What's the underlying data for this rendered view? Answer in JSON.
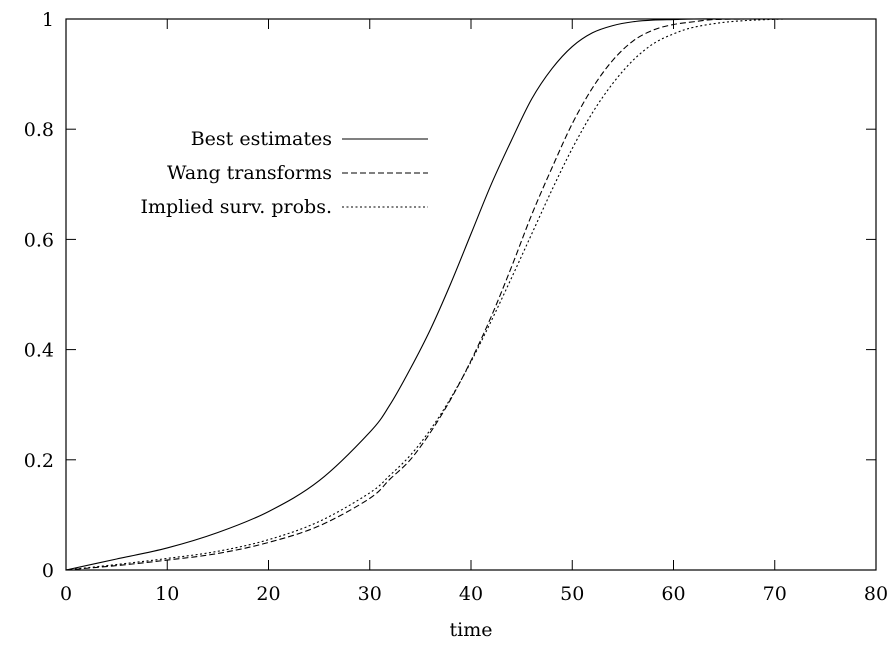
{
  "chart_data": {
    "type": "line",
    "title": "",
    "xlabel": "time",
    "ylabel": "",
    "xlim": [
      0,
      80
    ],
    "ylim": [
      0,
      1
    ],
    "x_ticks": [
      "0",
      "10",
      "20",
      "30",
      "40",
      "50",
      "60",
      "70",
      "80"
    ],
    "y_ticks": [
      "0",
      "0.2",
      "0.4",
      "0.6",
      "0.8",
      "1"
    ],
    "grid": false,
    "legend_position": "upper-left-inside",
    "series": [
      {
        "name": "Best estimates",
        "style": "solid",
        "x": [
          0,
          5,
          10,
          15,
          20,
          25,
          30,
          32,
          34,
          36,
          38,
          40,
          42,
          44,
          46,
          48,
          50,
          52,
          54,
          56,
          58,
          60,
          62,
          65
        ],
        "y": [
          0.0,
          0.02,
          0.04,
          0.068,
          0.106,
          0.162,
          0.25,
          0.3,
          0.365,
          0.437,
          0.52,
          0.61,
          0.7,
          0.78,
          0.855,
          0.91,
          0.95,
          0.975,
          0.988,
          0.995,
          0.998,
          0.999,
          1.0,
          1.0
        ]
      },
      {
        "name": "Wang transforms",
        "style": "dashed",
        "x": [
          0,
          5,
          10,
          15,
          20,
          25,
          30,
          32,
          34,
          36,
          38,
          40,
          42,
          44,
          46,
          48,
          50,
          52,
          54,
          56,
          58,
          60,
          62,
          64,
          67
        ],
        "y": [
          0.0,
          0.008,
          0.018,
          0.03,
          0.05,
          0.08,
          0.13,
          0.165,
          0.2,
          0.25,
          0.31,
          0.38,
          0.46,
          0.55,
          0.645,
          0.73,
          0.81,
          0.875,
          0.925,
          0.96,
          0.98,
          0.99,
          0.995,
          0.999,
          1.0
        ]
      },
      {
        "name": "Implied surv. probs.",
        "style": "dotted",
        "x": [
          0,
          5,
          10,
          15,
          20,
          25,
          30,
          32,
          34,
          36,
          38,
          40,
          42,
          44,
          46,
          48,
          50,
          52,
          54,
          56,
          58,
          60,
          62,
          65,
          68,
          71
        ],
        "y": [
          0.0,
          0.01,
          0.021,
          0.034,
          0.055,
          0.088,
          0.14,
          0.172,
          0.208,
          0.255,
          0.312,
          0.378,
          0.452,
          0.53,
          0.61,
          0.69,
          0.765,
          0.83,
          0.883,
          0.925,
          0.955,
          0.973,
          0.985,
          0.994,
          0.998,
          1.0
        ]
      }
    ]
  }
}
